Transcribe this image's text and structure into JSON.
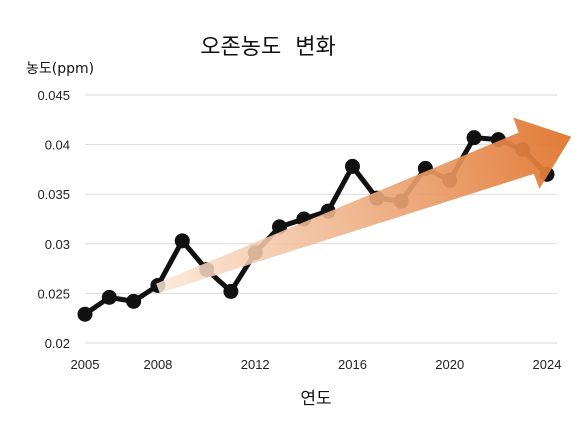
{
  "chart_data": {
    "type": "line",
    "title": "오존농도  변화",
    "ylabel": "농도(ppm)",
    "xlabel": "연도",
    "xlim": [
      2005,
      2024
    ],
    "ylim": [
      0.02,
      0.045
    ],
    "x_ticks": [
      "2005",
      "2008",
      "2012",
      "2016",
      "2020",
      "2024"
    ],
    "y_ticks": [
      "0.045",
      "0.04",
      "0.035",
      "0.03",
      "0.025",
      "0.02"
    ],
    "grid": true,
    "series": [
      {
        "x": [
          2005,
          2006,
          2007,
          2008,
          2009,
          2010,
          2011,
          2012,
          2013,
          2014,
          2015,
          2016,
          2017,
          2018,
          2019,
          2020,
          2021,
          2022,
          2023,
          2024
        ],
        "y": [
          0.0229,
          0.0246,
          0.0242,
          0.0258,
          0.0303,
          0.0274,
          0.0252,
          0.0291,
          0.0317,
          0.0325,
          0.0333,
          0.0378,
          0.0346,
          0.0343,
          0.0376,
          0.0364,
          0.0407,
          0.0405,
          0.0395,
          0.037
        ],
        "color": "#111111"
      }
    ],
    "trend_arrow": {
      "from": [
        2008,
        0.0255
      ],
      "to": [
        2025,
        0.0408
      ],
      "colors": [
        "#fbe6d6",
        "#e0742c"
      ]
    }
  }
}
